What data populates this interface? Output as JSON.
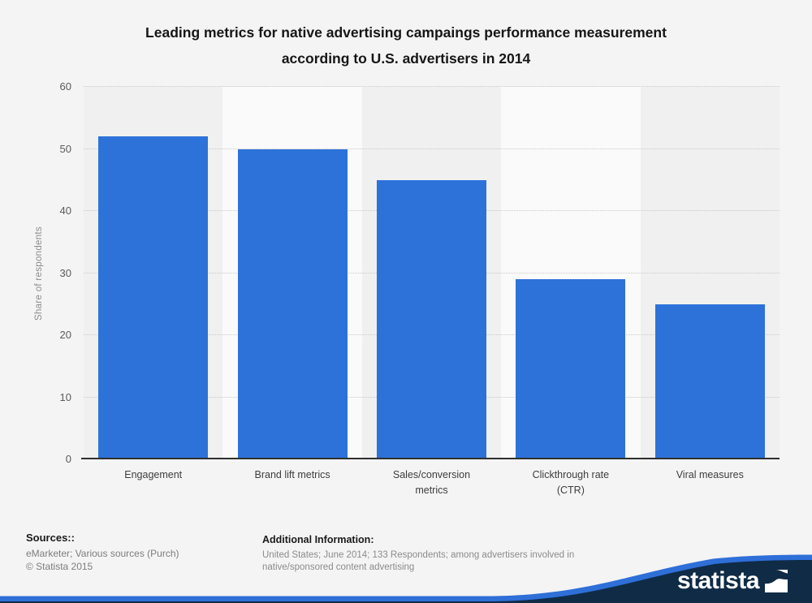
{
  "title": {
    "line1": "Leading metrics for native advertising campaings performance measurement",
    "line2": "according to U.S. advertisers in 2014"
  },
  "chart_data": {
    "type": "bar",
    "title": "Leading metrics for native advertising campaings performance measurement according to U.S. advertisers in 2014",
    "categories": [
      "Engagement",
      "Brand lift metrics",
      "Sales/conversion metrics",
      "Clickthrough rate (CTR)",
      "Viral measures"
    ],
    "category_lines": [
      [
        "Engagement"
      ],
      [
        "Brand lift metrics"
      ],
      [
        "Sales/conversion",
        "metrics"
      ],
      [
        "Clickthrough rate",
        "(CTR)"
      ],
      [
        "Viral measures"
      ]
    ],
    "values": [
      52,
      50,
      45,
      29,
      25
    ],
    "xlabel": "",
    "ylabel": "Share of respondents",
    "ylim": [
      0,
      60
    ],
    "yticks": [
      0,
      10,
      20,
      30,
      40,
      50,
      60
    ],
    "grid": "horizontal-dotted",
    "legend": "none",
    "bar_color": "#2d72d9",
    "band_colors": [
      "#f0f0f0",
      "#fafafa"
    ]
  },
  "footer": {
    "sources_label": "Sources::",
    "sources_line": "eMarketer; Various sources (Purch)",
    "copyright": "© Statista 2015",
    "additional_label": "Additional Information:",
    "additional_line1": "United States; June 2014; 133 Respondents; among advertisers involved in",
    "additional_line2": "native/sponsored content advertising"
  },
  "branding": {
    "logo_text": "statista",
    "logo_mark": "statista-s-curve-square",
    "wave_blue": "#2e6fd8",
    "wave_navy": "#0f2b46"
  }
}
